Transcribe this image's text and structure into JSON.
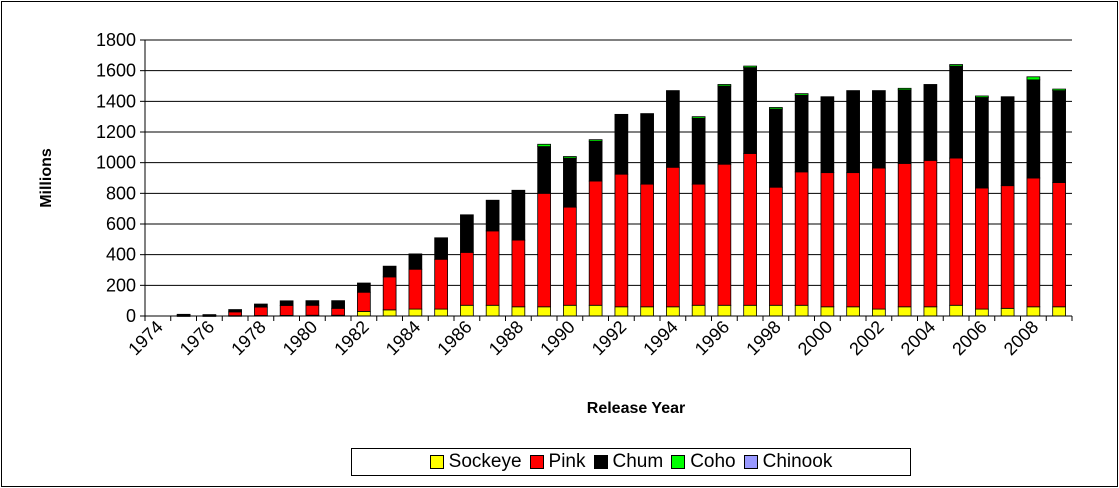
{
  "chart_data": {
    "type": "bar",
    "stacked": true,
    "xlabel": "Release Year",
    "ylabel": "Millions",
    "ylim": [
      0,
      1800
    ],
    "yticks": [
      "0",
      "200",
      "400",
      "600",
      "800",
      "1000",
      "1200",
      "1400",
      "1600",
      "1800"
    ],
    "xtick_labels": [
      "1974",
      "1976",
      "1978",
      "1980",
      "1982",
      "1984",
      "1986",
      "1988",
      "1990",
      "1992",
      "1994",
      "1996",
      "1998",
      "2000",
      "2002",
      "2004",
      "2006",
      "2008"
    ],
    "grid": "horizontal",
    "legend_position": "bottom",
    "categories": [
      1974,
      1975,
      1976,
      1977,
      1978,
      1979,
      1980,
      1981,
      1982,
      1983,
      1984,
      1985,
      1986,
      1987,
      1988,
      1989,
      1990,
      1991,
      1992,
      1993,
      1994,
      1995,
      1996,
      1997,
      1998,
      1999,
      2000,
      2001,
      2002,
      2003,
      2004,
      2005,
      2006,
      2007,
      2008,
      2009
    ],
    "series": [
      {
        "name": "Sockeye",
        "color": "#ffff00",
        "values": [
          0,
          1,
          1,
          2,
          3,
          4,
          5,
          5,
          30,
          40,
          45,
          45,
          70,
          70,
          60,
          60,
          70,
          70,
          60,
          60,
          60,
          70,
          70,
          70,
          70,
          70,
          60,
          60,
          45,
          60,
          60,
          70,
          45,
          50,
          60,
          60
        ]
      },
      {
        "name": "Pink",
        "color": "#ff0000",
        "values": [
          0,
          5,
          3,
          25,
          55,
          65,
          65,
          45,
          125,
          215,
          260,
          325,
          345,
          485,
          435,
          740,
          640,
          810,
          865,
          800,
          910,
          790,
          920,
          990,
          770,
          870,
          875,
          875,
          920,
          935,
          955,
          960,
          790,
          800,
          840,
          810
        ]
      },
      {
        "name": "Chum",
        "color": "#000000",
        "values": [
          0,
          5,
          5,
          15,
          20,
          30,
          30,
          50,
          60,
          70,
          100,
          140,
          245,
          200,
          325,
          305,
          320,
          260,
          390,
          460,
          500,
          430,
          510,
          560,
          510,
          500,
          495,
          535,
          505,
          480,
          495,
          600,
          590,
          580,
          640,
          600
        ]
      },
      {
        "name": "Coho",
        "color": "#00ff00",
        "values": [
          0,
          0,
          0,
          0,
          0,
          0,
          0,
          0,
          0,
          0,
          0,
          0,
          0,
          0,
          0,
          15,
          10,
          10,
          0,
          0,
          0,
          10,
          10,
          10,
          10,
          10,
          0,
          0,
          0,
          10,
          0,
          10,
          10,
          0,
          20,
          10
        ]
      },
      {
        "name": "Chinook",
        "color": "#9999ff",
        "values": [
          0,
          0,
          0,
          0,
          0,
          0,
          0,
          0,
          0,
          0,
          0,
          0,
          0,
          0,
          0,
          0,
          0,
          0,
          0,
          0,
          0,
          0,
          0,
          0,
          0,
          0,
          0,
          0,
          0,
          0,
          0,
          0,
          0,
          0,
          0,
          0
        ]
      }
    ]
  }
}
